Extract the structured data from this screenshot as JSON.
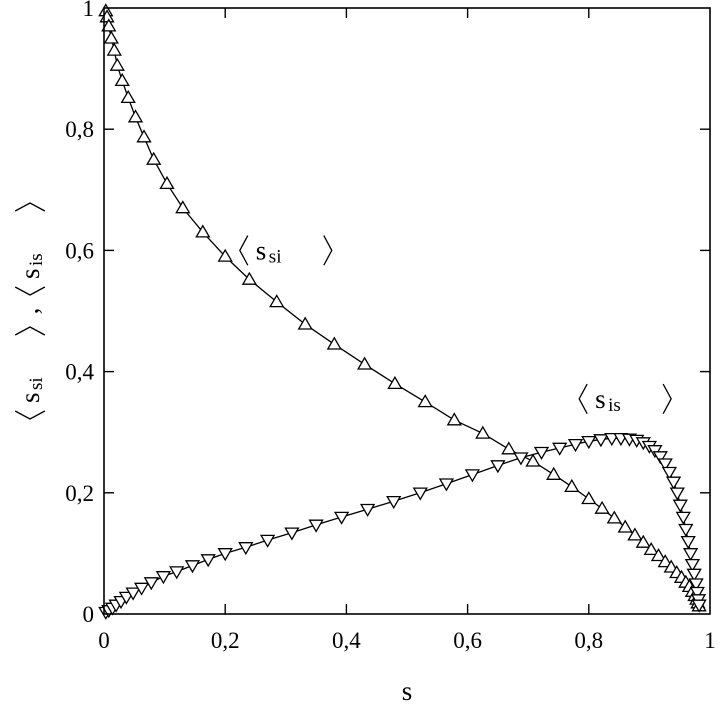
{
  "chart_data": {
    "type": "line",
    "title": "",
    "xlabel": "s",
    "ylabel": {
      "parts": [
        {
          "base": "s",
          "sub": "si"
        },
        {
          "base": "s",
          "sub": "is"
        }
      ],
      "separator": ","
    },
    "xlim": [
      0,
      1
    ],
    "ylim": [
      0,
      1
    ],
    "x_ticks": [
      0,
      0.2,
      0.4,
      0.6,
      0.8,
      1
    ],
    "y_ticks": [
      0,
      0.2,
      0.4,
      0.6,
      0.8,
      1
    ],
    "x_tick_labels": [
      "0",
      "0,2",
      "0,4",
      "0,6",
      "0,8",
      "1"
    ],
    "y_tick_labels": [
      "0",
      "0,2",
      "0,4",
      "0,6",
      "0,8",
      "1"
    ],
    "grid": false,
    "legend": "none",
    "series": [
      {
        "marker": "triangle-up",
        "color": "#000000",
        "x": [
          0.003,
          0.005,
          0.008,
          0.012,
          0.017,
          0.022,
          0.03,
          0.04,
          0.052,
          0.066,
          0.082,
          0.104,
          0.13,
          0.163,
          0.2,
          0.24,
          0.285,
          0.332,
          0.38,
          0.43,
          0.48,
          0.53,
          0.578,
          0.625,
          0.668,
          0.708,
          0.742,
          0.772,
          0.8,
          0.822,
          0.842,
          0.86,
          0.876,
          0.89,
          0.903,
          0.915,
          0.926,
          0.936,
          0.945,
          0.953,
          0.96,
          0.966,
          0.971,
          0.975,
          0.978,
          0.98,
          0.982
        ],
        "y": [
          0.995,
          0.985,
          0.97,
          0.95,
          0.93,
          0.905,
          0.88,
          0.852,
          0.82,
          0.787,
          0.75,
          0.71,
          0.67,
          0.63,
          0.59,
          0.552,
          0.515,
          0.478,
          0.445,
          0.412,
          0.38,
          0.35,
          0.32,
          0.298,
          0.272,
          0.252,
          0.23,
          0.21,
          0.19,
          0.174,
          0.158,
          0.143,
          0.13,
          0.118,
          0.106,
          0.096,
          0.086,
          0.077,
          0.068,
          0.06,
          0.052,
          0.045,
          0.037,
          0.03,
          0.024,
          0.018,
          0.013
        ]
      },
      {
        "marker": "triangle-down",
        "color": "#000000",
        "x": [
          0.003,
          0.008,
          0.014,
          0.02,
          0.028,
          0.037,
          0.048,
          0.062,
          0.078,
          0.098,
          0.12,
          0.146,
          0.172,
          0.2,
          0.234,
          0.27,
          0.31,
          0.35,
          0.392,
          0.435,
          0.478,
          0.522,
          0.565,
          0.608,
          0.65,
          0.688,
          0.722,
          0.752,
          0.778,
          0.8,
          0.82,
          0.838,
          0.853,
          0.867,
          0.879,
          0.89,
          0.9,
          0.909,
          0.918,
          0.926,
          0.933,
          0.94,
          0.946,
          0.951,
          0.956,
          0.96,
          0.964,
          0.968,
          0.971,
          0.974,
          0.977,
          0.979,
          0.981,
          0.982
        ],
        "y": [
          0.003,
          0.006,
          0.01,
          0.015,
          0.021,
          0.028,
          0.035,
          0.043,
          0.052,
          0.062,
          0.07,
          0.08,
          0.09,
          0.1,
          0.11,
          0.122,
          0.134,
          0.147,
          0.16,
          0.173,
          0.186,
          0.2,
          0.215,
          0.23,
          0.245,
          0.258,
          0.267,
          0.274,
          0.28,
          0.285,
          0.288,
          0.29,
          0.29,
          0.289,
          0.287,
          0.283,
          0.277,
          0.27,
          0.26,
          0.248,
          0.234,
          0.218,
          0.2,
          0.18,
          0.16,
          0.14,
          0.12,
          0.1,
          0.082,
          0.066,
          0.05,
          0.036,
          0.024,
          0.015
        ]
      }
    ],
    "annotations": [
      {
        "base": "s",
        "sub": "si",
        "x": 0.3,
        "y": 0.6
      },
      {
        "base": "s",
        "sub": "is",
        "x": 0.86,
        "y": 0.355
      }
    ]
  }
}
